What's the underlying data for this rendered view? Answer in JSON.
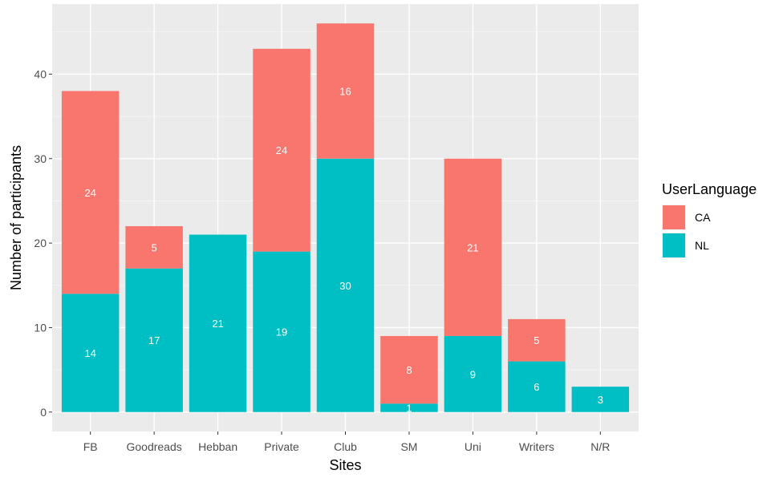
{
  "chart_data": {
    "type": "bar",
    "stacked": true,
    "categories": [
      "FB",
      "Goodreads",
      "Hebban",
      "Private",
      "Club",
      "SM",
      "Uni",
      "Writers",
      "N/R"
    ],
    "series": [
      {
        "name": "CA",
        "color": "#F8766D",
        "values": [
          24,
          5,
          0,
          24,
          16,
          8,
          21,
          5,
          0
        ]
      },
      {
        "name": "NL",
        "color": "#00BFC4",
        "values": [
          14,
          17,
          21,
          19,
          30,
          1,
          9,
          6,
          3
        ]
      }
    ],
    "xlabel": "Sites",
    "ylabel": "Number of participants",
    "ylim": [
      -2.3,
      48.3
    ],
    "yticks": [
      0,
      10,
      20,
      30,
      40
    ],
    "grid": true,
    "legend": {
      "title": "UserLanguage",
      "position": "right"
    }
  }
}
